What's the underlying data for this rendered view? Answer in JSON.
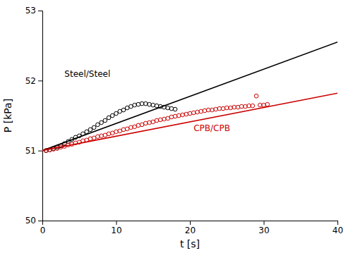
{
  "chart_data": {
    "type": "scatter",
    "xlabel": "t [s]",
    "ylabel": "P [kPa]",
    "xlim": [
      0,
      40
    ],
    "ylim": [
      50.0,
      53.0
    ],
    "xticks": [
      0,
      10,
      20,
      30,
      40
    ],
    "yticks": [
      50,
      51,
      52,
      53
    ],
    "grid": false,
    "series": [
      {
        "type": "line",
        "line_style": "solid",
        "color": "#000000",
        "x": [
          0,
          40
        ],
        "values": [
          51.0,
          52.55
        ]
      },
      {
        "type": "line",
        "line_style": "solid",
        "color": "#cc0000",
        "x": [
          0,
          40
        ],
        "values": [
          51.0,
          51.82
        ]
      },
      {
        "type": "scatter",
        "marker": "circle-open",
        "color": "#000000",
        "x": [
          0.5,
          1.0,
          1.5,
          2.0,
          2.5,
          3.0,
          3.5,
          4.0,
          4.5,
          5.0,
          5.5,
          6.0,
          6.5,
          7.0,
          7.5,
          8.0,
          8.5,
          9.0,
          9.5,
          10.0,
          10.5,
          11.0,
          11.5,
          12.0,
          12.5,
          13.0,
          13.5,
          14.0,
          14.5,
          15.0,
          15.5,
          16.0,
          16.5,
          17.0,
          17.5,
          18.0
        ],
        "values": [
          51.0,
          51.01,
          51.03,
          51.05,
          51.07,
          51.1,
          51.13,
          51.16,
          51.19,
          51.21,
          51.24,
          51.27,
          51.3,
          51.33,
          51.37,
          51.4,
          51.43,
          51.47,
          51.5,
          51.53,
          51.56,
          51.58,
          51.61,
          51.63,
          51.65,
          51.66,
          51.67,
          51.67,
          51.66,
          51.65,
          51.64,
          51.63,
          51.62,
          51.61,
          51.6,
          51.59
        ]
      },
      {
        "type": "scatter",
        "marker": "circle-open",
        "color": "#cc0000",
        "x": [
          0.5,
          1.0,
          1.5,
          2.0,
          2.5,
          3.0,
          3.5,
          4.0,
          4.5,
          5.0,
          5.5,
          6.0,
          6.5,
          7.0,
          7.5,
          8.0,
          8.5,
          9.0,
          9.5,
          10.0,
          10.5,
          11.0,
          11.5,
          12.0,
          12.5,
          13.0,
          13.5,
          14.0,
          14.5,
          15.0,
          15.5,
          16.0,
          16.5,
          17.0,
          17.5,
          18.0,
          18.5,
          19.0,
          19.5,
          20.0,
          20.5,
          21.0,
          21.5,
          22.0,
          22.5,
          23.0,
          23.5,
          24.0,
          24.5,
          25.0,
          25.5,
          26.0,
          26.5,
          27.0,
          27.5,
          28.0,
          28.5,
          29.0,
          29.5,
          30.0,
          30.5
        ],
        "values": [
          51.0,
          51.01,
          51.02,
          51.03,
          51.05,
          51.06,
          51.08,
          51.09,
          51.11,
          51.12,
          51.14,
          51.15,
          51.17,
          51.18,
          51.2,
          51.21,
          51.22,
          51.24,
          51.25,
          51.27,
          51.28,
          51.3,
          51.31,
          51.33,
          51.34,
          51.36,
          51.37,
          51.39,
          51.4,
          51.41,
          51.43,
          51.44,
          51.45,
          51.46,
          51.48,
          51.49,
          51.5,
          51.51,
          51.52,
          51.53,
          51.54,
          51.55,
          51.56,
          51.57,
          51.58,
          51.58,
          51.59,
          51.6,
          51.6,
          51.61,
          51.61,
          51.62,
          51.62,
          51.63,
          51.63,
          51.64,
          51.64,
          51.78,
          51.65,
          51.65,
          51.66
        ]
      }
    ],
    "annotations": [
      {
        "text": "Steel/Steel",
        "x": 3.0,
        "y": 52.05,
        "color": "#000000"
      },
      {
        "text": "CPB/CPB",
        "x": 20.5,
        "y": 51.28,
        "color": "#cc0000"
      }
    ]
  }
}
